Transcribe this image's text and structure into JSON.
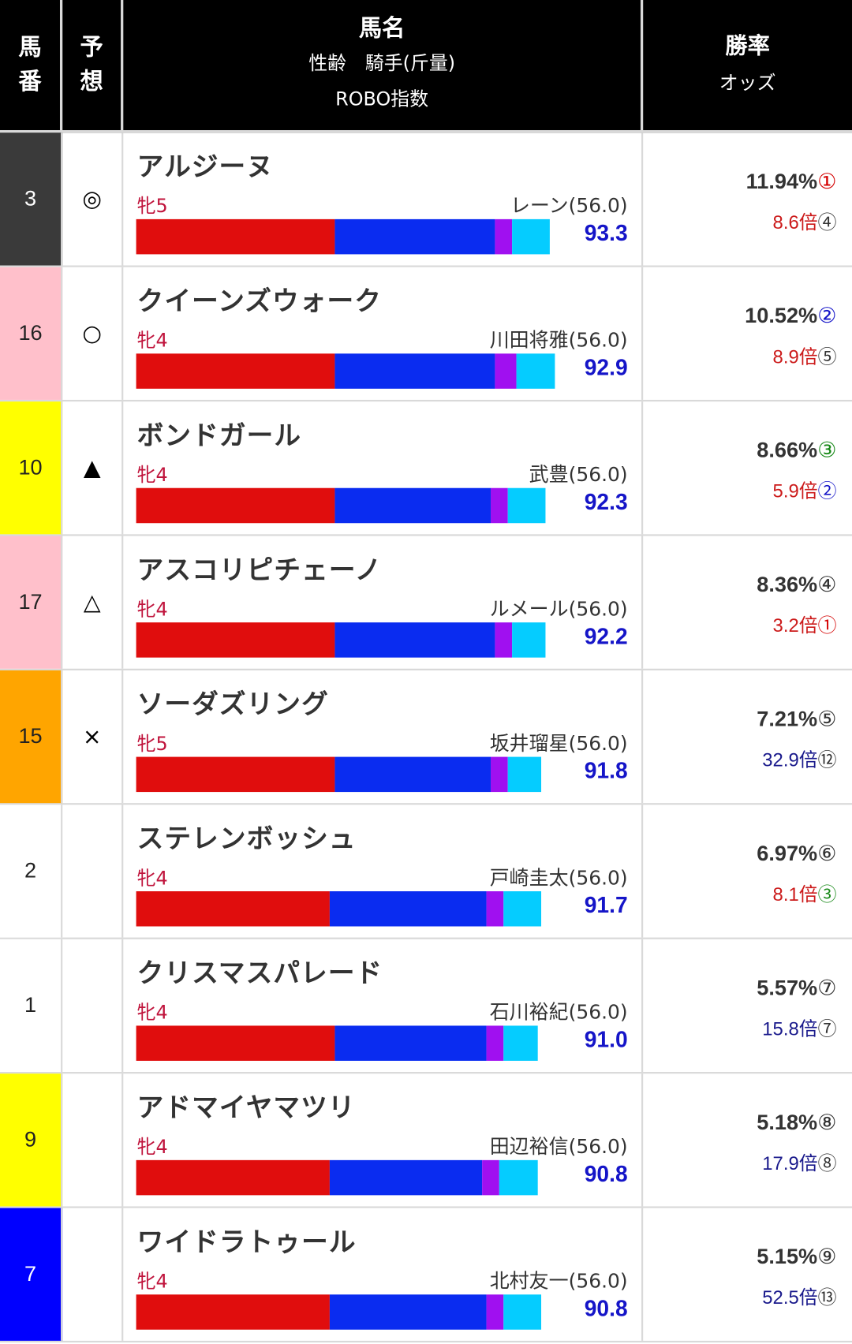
{
  "header": {
    "col_num_1": "馬",
    "col_num_2": "番",
    "col_mark_1": "予",
    "col_mark_2": "想",
    "col_name_title": "馬名",
    "col_name_sub": "性齢　騎手(斤量)",
    "col_name_index": "ROBO指数",
    "col_rate_title": "勝率",
    "col_rate_sub": "オッズ"
  },
  "colors": {
    "bar_red": "#e00d0d",
    "bar_blue": "#0a2cf0",
    "bar_purple": "#a010f0",
    "bar_cyan": "#05ccff",
    "index_text": "#1515c8",
    "sex_text": "#c0143c"
  },
  "rows": [
    {
      "number": "3",
      "number_bg": "#3a3a3a",
      "number_color": "#ffffff",
      "mark": "◎",
      "name": "アルジーヌ",
      "sex_age": "牝5",
      "jockey": "レーン(56.0)",
      "index": "93.3",
      "segments": [
        {
          "cls": "seg-r",
          "w": 232
        },
        {
          "cls": "seg-b",
          "w": 187
        },
        {
          "cls": "seg-p",
          "w": 20
        },
        {
          "cls": "seg-c",
          "w": 44
        }
      ],
      "win_rate": "11.94%",
      "rate_rank": "①",
      "rate_rank_color": "#d40000",
      "odds": "8.6倍",
      "odds_color": "#cc1b1b",
      "odds_rank": "④",
      "odds_rank_color": "#333333"
    },
    {
      "number": "16",
      "number_bg": "#ffc0cb",
      "number_color": "#222222",
      "mark": "○",
      "name": "クイーンズウォーク",
      "sex_age": "牝4",
      "jockey": "川田将雅(56.0)",
      "index": "92.9",
      "segments": [
        {
          "cls": "seg-r",
          "w": 232
        },
        {
          "cls": "seg-b",
          "w": 187
        },
        {
          "cls": "seg-p",
          "w": 25
        },
        {
          "cls": "seg-c",
          "w": 45
        }
      ],
      "win_rate": "10.52%",
      "rate_rank": "②",
      "rate_rank_color": "#1515c8",
      "odds": "8.9倍",
      "odds_color": "#cc1b1b",
      "odds_rank": "⑤",
      "odds_rank_color": "#333333"
    },
    {
      "number": "10",
      "number_bg": "#ffff00",
      "number_color": "#222222",
      "mark": "▲",
      "name": "ボンドガール",
      "sex_age": "牝4",
      "jockey": "武豊(56.0)",
      "index": "92.3",
      "segments": [
        {
          "cls": "seg-r",
          "w": 232
        },
        {
          "cls": "seg-b",
          "w": 182
        },
        {
          "cls": "seg-p",
          "w": 20
        },
        {
          "cls": "seg-c",
          "w": 44
        }
      ],
      "win_rate": "8.66%",
      "rate_rank": "③",
      "rate_rank_color": "#1a8a1a",
      "odds": "5.9倍",
      "odds_color": "#cc1b1b",
      "odds_rank": "②",
      "odds_rank_color": "#1515c8"
    },
    {
      "number": "17",
      "number_bg": "#ffc0cb",
      "number_color": "#222222",
      "mark": "△",
      "name": "アスコリピチェーノ",
      "sex_age": "牝4",
      "jockey": "ルメール(56.0)",
      "index": "92.2",
      "segments": [
        {
          "cls": "seg-r",
          "w": 232
        },
        {
          "cls": "seg-b",
          "w": 187
        },
        {
          "cls": "seg-p",
          "w": 20
        },
        {
          "cls": "seg-c",
          "w": 39
        }
      ],
      "win_rate": "8.36%",
      "rate_rank": "④",
      "rate_rank_color": "#333333",
      "odds": "3.2倍",
      "odds_color": "#cc1b1b",
      "odds_rank": "①",
      "odds_rank_color": "#d40000"
    },
    {
      "number": "15",
      "number_bg": "#ffa500",
      "number_color": "#222222",
      "mark": "×",
      "name": "ソーダズリング",
      "sex_age": "牝5",
      "jockey": "坂井瑠星(56.0)",
      "index": "91.8",
      "segments": [
        {
          "cls": "seg-r",
          "w": 232
        },
        {
          "cls": "seg-b",
          "w": 182
        },
        {
          "cls": "seg-p",
          "w": 20
        },
        {
          "cls": "seg-c",
          "w": 39
        }
      ],
      "win_rate": "7.21%",
      "rate_rank": "⑤",
      "rate_rank_color": "#333333",
      "odds": "32.9倍",
      "odds_color": "#1a1a8c",
      "odds_rank": "⑫",
      "odds_rank_color": "#333333"
    },
    {
      "number": "2",
      "number_bg": "#ffffff",
      "number_color": "#222222",
      "mark": "",
      "name": "ステレンボッシュ",
      "sex_age": "牝4",
      "jockey": "戸崎圭太(56.0)",
      "index": "91.7",
      "segments": [
        {
          "cls": "seg-r",
          "w": 226
        },
        {
          "cls": "seg-b",
          "w": 183
        },
        {
          "cls": "seg-p",
          "w": 20
        },
        {
          "cls": "seg-c",
          "w": 44
        }
      ],
      "win_rate": "6.97%",
      "rate_rank": "⑥",
      "rate_rank_color": "#333333",
      "odds": "8.1倍",
      "odds_color": "#cc1b1b",
      "odds_rank": "③",
      "odds_rank_color": "#1a8a1a"
    },
    {
      "number": "1",
      "number_bg": "#ffffff",
      "number_color": "#222222",
      "mark": "",
      "name": "クリスマスパレード",
      "sex_age": "牝4",
      "jockey": "石川裕紀(56.0)",
      "index": "91.0",
      "segments": [
        {
          "cls": "seg-r",
          "w": 232
        },
        {
          "cls": "seg-b",
          "w": 177
        },
        {
          "cls": "seg-p",
          "w": 20
        },
        {
          "cls": "seg-c",
          "w": 40
        }
      ],
      "win_rate": "5.57%",
      "rate_rank": "⑦",
      "rate_rank_color": "#333333",
      "odds": "15.8倍",
      "odds_color": "#1a1a8c",
      "odds_rank": "⑦",
      "odds_rank_color": "#333333"
    },
    {
      "number": "9",
      "number_bg": "#ffff00",
      "number_color": "#222222",
      "mark": "",
      "name": "アドマイヤマツリ",
      "sex_age": "牝4",
      "jockey": "田辺裕信(56.0)",
      "index": "90.8",
      "segments": [
        {
          "cls": "seg-r",
          "w": 226
        },
        {
          "cls": "seg-b",
          "w": 178
        },
        {
          "cls": "seg-p",
          "w": 20
        },
        {
          "cls": "seg-c",
          "w": 45
        }
      ],
      "win_rate": "5.18%",
      "rate_rank": "⑧",
      "rate_rank_color": "#333333",
      "odds": "17.9倍",
      "odds_color": "#1a1a8c",
      "odds_rank": "⑧",
      "odds_rank_color": "#333333"
    },
    {
      "number": "7",
      "number_bg": "#0000ff",
      "number_color": "#ffffff",
      "mark": "",
      "name": "ワイドラトゥール",
      "sex_age": "牝4",
      "jockey": "北村友一(56.0)",
      "index": "90.8",
      "segments": [
        {
          "cls": "seg-r",
          "w": 226
        },
        {
          "cls": "seg-b",
          "w": 183
        },
        {
          "cls": "seg-p",
          "w": 20
        },
        {
          "cls": "seg-c",
          "w": 44
        }
      ],
      "win_rate": "5.15%",
      "rate_rank": "⑨",
      "rate_rank_color": "#333333",
      "odds": "52.5倍",
      "odds_color": "#1a1a8c",
      "odds_rank": "⑬",
      "odds_rank_color": "#333333"
    }
  ]
}
